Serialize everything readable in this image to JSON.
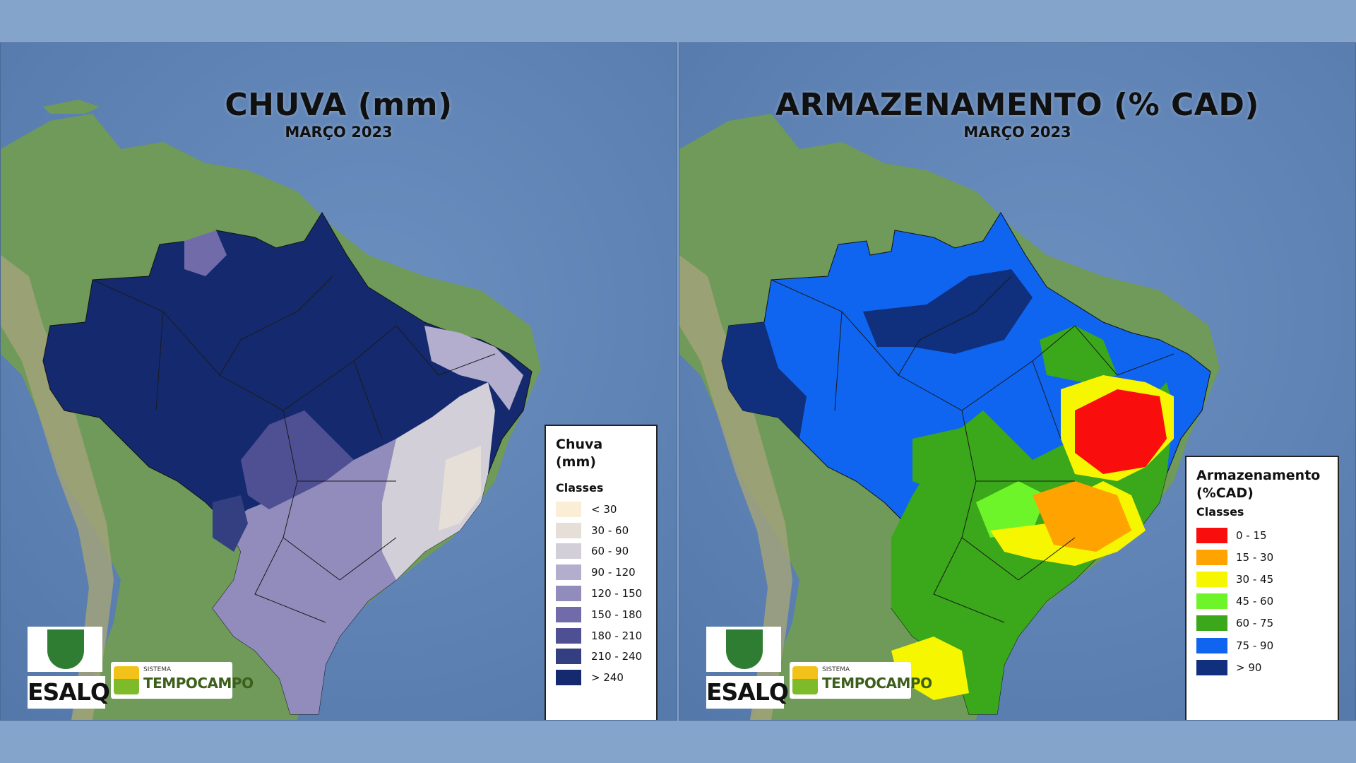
{
  "panels": [
    {
      "title": "CHUVA (mm)",
      "subtitle": "MARÇO 2023",
      "variable": "rainfall",
      "legend": {
        "title": "Chuva (mm)",
        "classes_label": "Classes",
        "items": [
          {
            "label": "< 30",
            "color": "#fbeed6"
          },
          {
            "label": "30 - 60",
            "color": "#e6dfd8"
          },
          {
            "label": "60 - 90",
            "color": "#d3cfd8"
          },
          {
            "label": "90 - 120",
            "color": "#b3aece"
          },
          {
            "label": "120 - 150",
            "color": "#928cbd"
          },
          {
            "label": "150 - 180",
            "color": "#716ca9"
          },
          {
            "label": "180 - 210",
            "color": "#4f4f94"
          },
          {
            "label": "210 - 240",
            "color": "#333f80"
          },
          {
            "label": "> 240",
            "color": "#152a6e"
          }
        ]
      },
      "logos": {
        "esalq": "ESALQ",
        "tempocampo_small": "SISTEMA",
        "tempocampo_big": "TEMPOCAMPO"
      }
    },
    {
      "title": "ARMAZENAMENTO (% CAD)",
      "subtitle": "MARÇO 2023",
      "variable": "soil water storage",
      "legend": {
        "title": "Armazenamento (%CAD)",
        "classes_label": "Classes",
        "items": [
          {
            "label": "0 - 15",
            "color": "#fa0d0d"
          },
          {
            "label": "15 - 30",
            "color": "#ffa300"
          },
          {
            "label": "30 - 45",
            "color": "#f6f600"
          },
          {
            "label": "45 - 60",
            "color": "#6ef52a"
          },
          {
            "label": "60 - 75",
            "color": "#3aa81a"
          },
          {
            "label": "75 - 90",
            "color": "#0f65f0"
          },
          {
            "label": "> 90",
            "color": "#102f7c"
          }
        ]
      },
      "logos": {
        "esalq": "ESALQ",
        "tempocampo_small": "SISTEMA",
        "tempocampo_big": "TEMPOCAMPO"
      }
    }
  ],
  "map_colors": {
    "ocean": "#5d82b3",
    "land": "#6f9a5a",
    "land_dark": "#4f7a45",
    "andes": "#a1a27a",
    "borders": "#1a1a1a"
  }
}
